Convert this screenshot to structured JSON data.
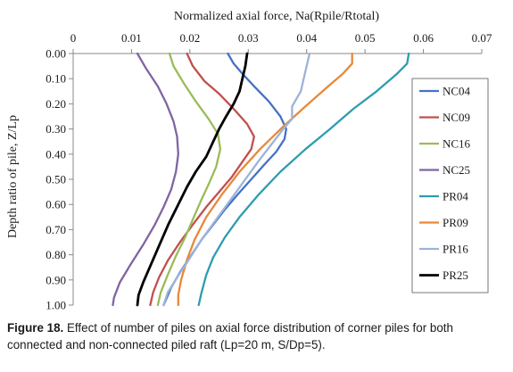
{
  "chart_data": {
    "type": "line",
    "xlabel": "Normalized axial force, Na(Rpile/Rtotal)",
    "ylabel": "Depth ratio of pile, Z/Lp",
    "xlim": [
      0,
      0.07
    ],
    "ylim": [
      0,
      1
    ],
    "y_inverted": true,
    "x_ticks": [
      "0",
      "0.01",
      "0.02",
      "0.03",
      "0.04",
      "0.05",
      "0.06",
      "0.07"
    ],
    "y_ticks": [
      "0.00",
      "0.10",
      "0.20",
      "0.30",
      "0.40",
      "0.50",
      "0.60",
      "0.70",
      "0.80",
      "0.90",
      "1.00"
    ],
    "x_axis_position": "top",
    "grid": false,
    "legend_position": "right",
    "series": [
      {
        "name": "NC04",
        "color": "#4472C4",
        "points": [
          [
            0.0265,
            0
          ],
          [
            0.0275,
            0.04
          ],
          [
            0.029,
            0.08
          ],
          [
            0.031,
            0.13
          ],
          [
            0.0335,
            0.19
          ],
          [
            0.0355,
            0.25
          ],
          [
            0.0365,
            0.3
          ],
          [
            0.0362,
            0.34
          ],
          [
            0.0348,
            0.39
          ],
          [
            0.0328,
            0.44
          ],
          [
            0.0305,
            0.5
          ],
          [
            0.0282,
            0.56
          ],
          [
            0.026,
            0.62
          ],
          [
            0.024,
            0.68
          ],
          [
            0.022,
            0.74
          ],
          [
            0.02,
            0.81
          ],
          [
            0.0183,
            0.87
          ],
          [
            0.0168,
            0.93
          ],
          [
            0.0155,
            1.0
          ]
        ]
      },
      {
        "name": "NC09",
        "color": "#C0504D",
        "points": [
          [
            0.0195,
            0
          ],
          [
            0.0205,
            0.05
          ],
          [
            0.0225,
            0.11
          ],
          [
            0.025,
            0.16
          ],
          [
            0.0275,
            0.22
          ],
          [
            0.0298,
            0.28
          ],
          [
            0.031,
            0.33
          ],
          [
            0.0305,
            0.38
          ],
          [
            0.029,
            0.43
          ],
          [
            0.0272,
            0.49
          ],
          [
            0.025,
            0.55
          ],
          [
            0.0228,
            0.61
          ],
          [
            0.0205,
            0.68
          ],
          [
            0.0183,
            0.75
          ],
          [
            0.0163,
            0.82
          ],
          [
            0.0147,
            0.89
          ],
          [
            0.0137,
            0.95
          ],
          [
            0.0132,
            1.0
          ]
        ]
      },
      {
        "name": "NC16",
        "color": "#9BBB59",
        "points": [
          [
            0.0165,
            0
          ],
          [
            0.0172,
            0.05
          ],
          [
            0.019,
            0.12
          ],
          [
            0.021,
            0.19
          ],
          [
            0.0232,
            0.26
          ],
          [
            0.0248,
            0.32
          ],
          [
            0.0252,
            0.38
          ],
          [
            0.0245,
            0.45
          ],
          [
            0.0232,
            0.52
          ],
          [
            0.0218,
            0.59
          ],
          [
            0.0205,
            0.66
          ],
          [
            0.0192,
            0.73
          ],
          [
            0.0175,
            0.81
          ],
          [
            0.0162,
            0.88
          ],
          [
            0.015,
            0.95
          ],
          [
            0.0145,
            1.0
          ]
        ]
      },
      {
        "name": "NC25",
        "color": "#8064A2",
        "points": [
          [
            0.011,
            0
          ],
          [
            0.0125,
            0.06
          ],
          [
            0.0145,
            0.13
          ],
          [
            0.016,
            0.2
          ],
          [
            0.0172,
            0.27
          ],
          [
            0.0178,
            0.33
          ],
          [
            0.018,
            0.4
          ],
          [
            0.0176,
            0.47
          ],
          [
            0.0168,
            0.54
          ],
          [
            0.0155,
            0.61
          ],
          [
            0.014,
            0.68
          ],
          [
            0.012,
            0.76
          ],
          [
            0.0098,
            0.84
          ],
          [
            0.008,
            0.91
          ],
          [
            0.007,
            0.97
          ],
          [
            0.0068,
            1.0
          ]
        ]
      },
      {
        "name": "PR04",
        "color": "#2E9CB0",
        "points": [
          [
            0.0575,
            0
          ],
          [
            0.0572,
            0.04
          ],
          [
            0.0555,
            0.08
          ],
          [
            0.052,
            0.15
          ],
          [
            0.048,
            0.22
          ],
          [
            0.044,
            0.3
          ],
          [
            0.0398,
            0.38
          ],
          [
            0.0355,
            0.47
          ],
          [
            0.0318,
            0.56
          ],
          [
            0.0285,
            0.65
          ],
          [
            0.026,
            0.73
          ],
          [
            0.024,
            0.81
          ],
          [
            0.0228,
            0.88
          ],
          [
            0.022,
            0.95
          ],
          [
            0.0215,
            1.0
          ]
        ]
      },
      {
        "name": "PR09",
        "color": "#E8883A",
        "points": [
          [
            0.0478,
            0
          ],
          [
            0.0478,
            0.04
          ],
          [
            0.0462,
            0.08
          ],
          [
            0.0432,
            0.14
          ],
          [
            0.0398,
            0.21
          ],
          [
            0.036,
            0.29
          ],
          [
            0.032,
            0.38
          ],
          [
            0.0285,
            0.47
          ],
          [
            0.0255,
            0.56
          ],
          [
            0.0228,
            0.65
          ],
          [
            0.0208,
            0.74
          ],
          [
            0.0195,
            0.82
          ],
          [
            0.0185,
            0.9
          ],
          [
            0.018,
            0.96
          ],
          [
            0.018,
            1.0
          ]
        ]
      },
      {
        "name": "PR16",
        "color": "#9CB3D9",
        "points": [
          [
            0.0405,
            0
          ],
          [
            0.04,
            0.05
          ],
          [
            0.0395,
            0.1
          ],
          [
            0.039,
            0.15
          ],
          [
            0.0375,
            0.21
          ],
          [
            0.0375,
            0.26
          ],
          [
            0.036,
            0.3
          ],
          [
            0.034,
            0.36
          ],
          [
            0.032,
            0.42
          ],
          [
            0.0295,
            0.5
          ],
          [
            0.027,
            0.58
          ],
          [
            0.0245,
            0.66
          ],
          [
            0.022,
            0.74
          ],
          [
            0.0198,
            0.82
          ],
          [
            0.0178,
            0.89
          ],
          [
            0.0162,
            0.95
          ],
          [
            0.0155,
            1.0
          ]
        ]
      },
      {
        "name": "PR25",
        "color": "#000000",
        "points": [
          [
            0.0298,
            0
          ],
          [
            0.0295,
            0.05
          ],
          [
            0.029,
            0.1
          ],
          [
            0.0285,
            0.15
          ],
          [
            0.0275,
            0.2
          ],
          [
            0.0262,
            0.25
          ],
          [
            0.025,
            0.3
          ],
          [
            0.024,
            0.35
          ],
          [
            0.0228,
            0.41
          ],
          [
            0.021,
            0.47
          ],
          [
            0.0195,
            0.53
          ],
          [
            0.018,
            0.6
          ],
          [
            0.0163,
            0.68
          ],
          [
            0.0148,
            0.76
          ],
          [
            0.0133,
            0.84
          ],
          [
            0.012,
            0.91
          ],
          [
            0.0112,
            0.96
          ],
          [
            0.011,
            1.0
          ]
        ]
      }
    ]
  },
  "caption": {
    "label": "Figure 18.",
    "text": " Effect of number of piles on axial force distribution of corner piles for both connected and non-connected piled raft (Lp=20 m, S/Dp=5)."
  }
}
